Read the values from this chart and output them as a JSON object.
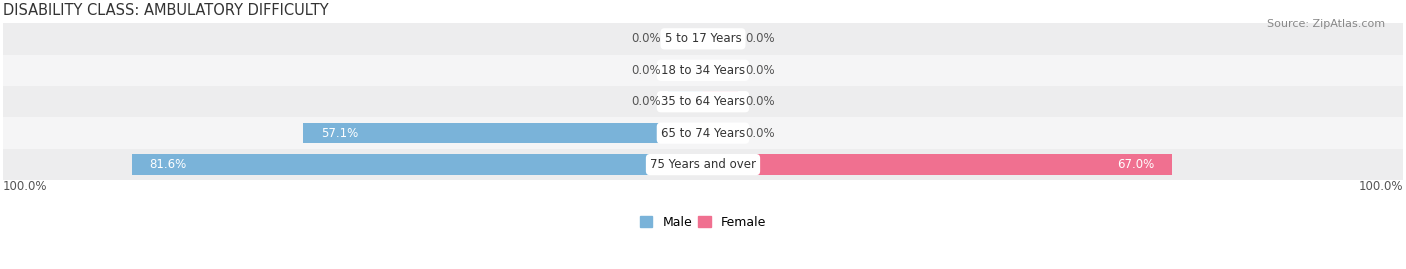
{
  "title": "DISABILITY CLASS: AMBULATORY DIFFICULTY",
  "source": "Source: ZipAtlas.com",
  "categories": [
    "5 to 17 Years",
    "18 to 34 Years",
    "35 to 64 Years",
    "65 to 74 Years",
    "75 Years and over"
  ],
  "male_values": [
    0.0,
    0.0,
    0.0,
    57.1,
    81.6
  ],
  "female_values": [
    0.0,
    0.0,
    0.0,
    0.0,
    67.0
  ],
  "male_color": "#7ab3d9",
  "female_color": "#f07090",
  "row_bg_even": "#ededee",
  "row_bg_odd": "#f5f5f6",
  "max_val": 100.0,
  "label_dark": "#555555",
  "label_white": "#ffffff",
  "title_color": "#333333",
  "title_fontsize": 10.5,
  "label_fontsize": 8.5,
  "category_fontsize": 8.5,
  "source_fontsize": 8,
  "stub_size": 5.0,
  "bar_height": 0.65
}
